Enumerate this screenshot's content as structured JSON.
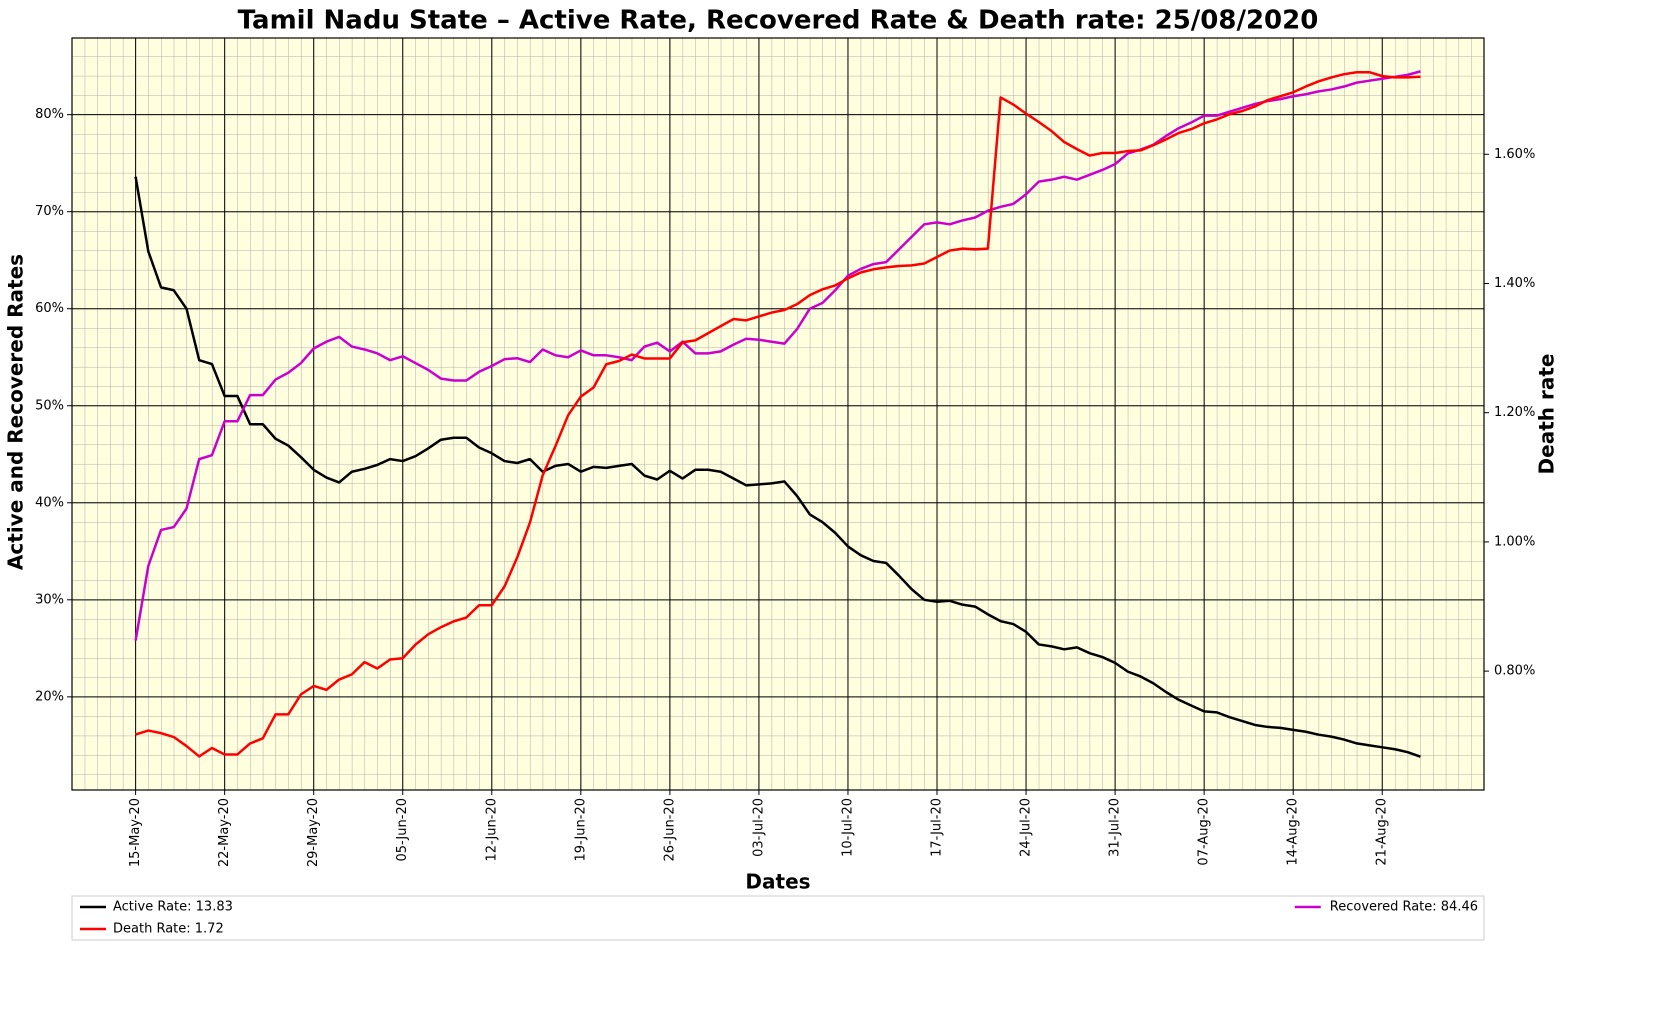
{
  "chart_data": {
    "type": "line",
    "title": "Tamil Nadu State –  Active Rate, Recovered Rate & Death rate: 25/08/2020",
    "x_label": "Dates",
    "y_label": "Active and Recovered Rates",
    "y2_label": "Death rate",
    "grid": true,
    "x": [
      "15-May-20",
      "16-May-20",
      "17-May-20",
      "18-May-20",
      "19-May-20",
      "20-May-20",
      "21-May-20",
      "22-May-20",
      "23-May-20",
      "24-May-20",
      "25-May-20",
      "26-May-20",
      "27-May-20",
      "28-May-20",
      "29-May-20",
      "30-May-20",
      "31-May-20",
      "01-Jun-20",
      "02-Jun-20",
      "03-Jun-20",
      "04-Jun-20",
      "05-Jun-20",
      "06-Jun-20",
      "07-Jun-20",
      "08-Jun-20",
      "09-Jun-20",
      "10-Jun-20",
      "11-Jun-20",
      "12-Jun-20",
      "13-Jun-20",
      "14-Jun-20",
      "15-Jun-20",
      "16-Jun-20",
      "17-Jun-20",
      "18-Jun-20",
      "19-Jun-20",
      "20-Jun-20",
      "21-Jun-20",
      "22-Jun-20",
      "23-Jun-20",
      "24-Jun-20",
      "25-Jun-20",
      "26-Jun-20",
      "27-Jun-20",
      "28-Jun-20",
      "29-Jun-20",
      "30-Jun-20",
      "01-Jul-20",
      "02-Jul-20",
      "03-Jul-20",
      "04-Jul-20",
      "05-Jul-20",
      "06-Jul-20",
      "07-Jul-20",
      "08-Jul-20",
      "09-Jul-20",
      "10-Jul-20",
      "11-Jul-20",
      "12-Jul-20",
      "13-Jul-20",
      "14-Jul-20",
      "15-Jul-20",
      "16-Jul-20",
      "17-Jul-20",
      "18-Jul-20",
      "19-Jul-20",
      "20-Jul-20",
      "21-Jul-20",
      "22-Jul-20",
      "23-Jul-20",
      "24-Jul-20",
      "25-Jul-20",
      "26-Jul-20",
      "27-Jul-20",
      "28-Jul-20",
      "29-Jul-20",
      "30-Jul-20",
      "31-Jul-20",
      "01-Aug-20",
      "02-Aug-20",
      "03-Aug-20",
      "04-Aug-20",
      "05-Aug-20",
      "06-Aug-20",
      "07-Aug-20",
      "08-Aug-20",
      "09-Aug-20",
      "10-Aug-20",
      "11-Aug-20",
      "12-Aug-20",
      "13-Aug-20",
      "14-Aug-20",
      "15-Aug-20",
      "16-Aug-20",
      "17-Aug-20",
      "18-Aug-20",
      "19-Aug-20",
      "20-Aug-20",
      "21-Aug-20",
      "22-Aug-20",
      "23-Aug-20",
      "24-Aug-20"
    ],
    "xlim": [
      "10-May-20",
      "29-Aug-20"
    ],
    "xticks": [
      "15-May-20",
      "22-May-20",
      "29-May-20",
      "05-Jun-20",
      "12-Jun-20",
      "19-Jun-20",
      "26-Jun-20",
      "03-Jul-20",
      "10-Jul-20",
      "17-Jul-20",
      "24-Jul-20",
      "31-Jul-20",
      "07-Aug-20",
      "14-Aug-20",
      "21-Aug-20"
    ],
    "ylim": [
      10.4,
      87.9
    ],
    "yticks": [
      {
        "value": 20,
        "label": "20%"
      },
      {
        "value": 30,
        "label": "30%"
      },
      {
        "value": 40,
        "label": "40%"
      },
      {
        "value": 50,
        "label": "50%"
      },
      {
        "value": 60,
        "label": "60%"
      },
      {
        "value": 70,
        "label": "70%"
      },
      {
        "value": 80,
        "label": "80%"
      }
    ],
    "y2lim": [
      0.616,
      1.78
    ],
    "y2ticks": [
      {
        "value": 0.8,
        "label": "0.80%"
      },
      {
        "value": 1.0,
        "label": "1.00%"
      },
      {
        "value": 1.2,
        "label": "1.20%"
      },
      {
        "value": 1.4,
        "label": "1.40%"
      },
      {
        "value": 1.6,
        "label": "1.60%"
      }
    ],
    "series": [
      {
        "name": "Active Rate: 13.83",
        "color": "#000000",
        "values": [
          73.6,
          65.9,
          62.2,
          61.9,
          60.0,
          54.7,
          54.3,
          51.0,
          51.0,
          48.1,
          48.1,
          46.6,
          45.9,
          44.7,
          43.4,
          42.6,
          42.1,
          43.2,
          43.5,
          43.9,
          44.5,
          44.3,
          44.8,
          45.6,
          46.5,
          46.7,
          46.7,
          45.7,
          45.1,
          44.3,
          44.1,
          44.5,
          43.2,
          43.8,
          44.0,
          43.2,
          43.7,
          43.6,
          43.8,
          44.0,
          42.8,
          42.4,
          43.3,
          42.5,
          43.4,
          43.4,
          43.2,
          42.5,
          41.8,
          41.9,
          42.0,
          42.2,
          40.7,
          38.8,
          38.0,
          36.9,
          35.5,
          34.6,
          34.0,
          33.8,
          32.5,
          31.1,
          30.0,
          29.8,
          29.9,
          29.5,
          29.3,
          28.5,
          27.8,
          27.5,
          26.7,
          25.4,
          25.2,
          24.9,
          25.1,
          24.5,
          24.1,
          23.5,
          22.6,
          22.1,
          21.4,
          20.5,
          19.7,
          19.1,
          18.5,
          18.4,
          17.9,
          17.5,
          17.1,
          16.9,
          16.8,
          16.6,
          16.4,
          16.1,
          15.9,
          15.6,
          15.2,
          15.0,
          14.8,
          14.6,
          14.3,
          13.83
        ]
      },
      {
        "name": "Recovered Rate: 84.46",
        "color": "#cc00cc",
        "values": [
          25.8,
          33.5,
          37.2,
          37.5,
          39.4,
          44.5,
          44.9,
          48.4,
          48.4,
          51.1,
          51.1,
          52.7,
          53.4,
          54.4,
          55.9,
          56.6,
          57.1,
          56.1,
          55.8,
          55.4,
          54.7,
          55.1,
          54.4,
          53.7,
          52.8,
          52.6,
          52.6,
          53.5,
          54.1,
          54.8,
          54.9,
          54.5,
          55.8,
          55.2,
          55.0,
          55.7,
          55.2,
          55.2,
          55.0,
          54.7,
          56.1,
          56.5,
          55.6,
          56.6,
          55.4,
          55.4,
          55.6,
          56.3,
          56.9,
          56.8,
          56.6,
          56.4,
          57.9,
          60.0,
          60.6,
          61.9,
          63.4,
          64.1,
          64.6,
          64.8,
          66.1,
          67.4,
          68.7,
          68.9,
          68.7,
          69.1,
          69.4,
          70.1,
          70.5,
          70.8,
          71.8,
          73.1,
          73.3,
          73.6,
          73.3,
          73.8,
          74.3,
          74.9,
          76.0,
          76.4,
          76.9,
          77.8,
          78.6,
          79.2,
          79.9,
          79.9,
          80.3,
          80.7,
          81.1,
          81.4,
          81.6,
          81.9,
          82.1,
          82.4,
          82.6,
          82.9,
          83.3,
          83.5,
          83.7,
          83.9,
          84.1,
          84.46
        ]
      },
      {
        "name": "Death Rate: 1.72",
        "color": "#ff0000",
        "axis": "y2",
        "values": [
          0.702,
          0.708,
          0.704,
          0.698,
          0.684,
          0.668,
          0.681,
          0.671,
          0.671,
          0.688,
          0.696,
          0.733,
          0.733,
          0.764,
          0.777,
          0.771,
          0.787,
          0.795,
          0.814,
          0.804,
          0.818,
          0.82,
          0.841,
          0.857,
          0.868,
          0.877,
          0.883,
          0.902,
          0.902,
          0.931,
          0.976,
          1.03,
          1.103,
          1.148,
          1.196,
          1.225,
          1.239,
          1.275,
          1.28,
          1.29,
          1.284,
          1.284,
          1.284,
          1.309,
          1.312,
          1.323,
          1.334,
          1.345,
          1.343,
          1.349,
          1.355,
          1.359,
          1.368,
          1.382,
          1.391,
          1.397,
          1.408,
          1.417,
          1.422,
          1.425,
          1.427,
          1.428,
          1.431,
          1.441,
          1.451,
          1.454,
          1.453,
          1.454,
          1.688,
          1.677,
          1.663,
          1.65,
          1.636,
          1.619,
          1.608,
          1.598,
          1.602,
          1.602,
          1.605,
          1.606,
          1.614,
          1.623,
          1.633,
          1.639,
          1.648,
          1.654,
          1.662,
          1.667,
          1.674,
          1.684,
          1.69,
          1.696,
          1.705,
          1.713,
          1.719,
          1.724,
          1.727,
          1.727,
          1.721,
          1.719,
          1.719,
          1.72
        ]
      }
    ]
  }
}
